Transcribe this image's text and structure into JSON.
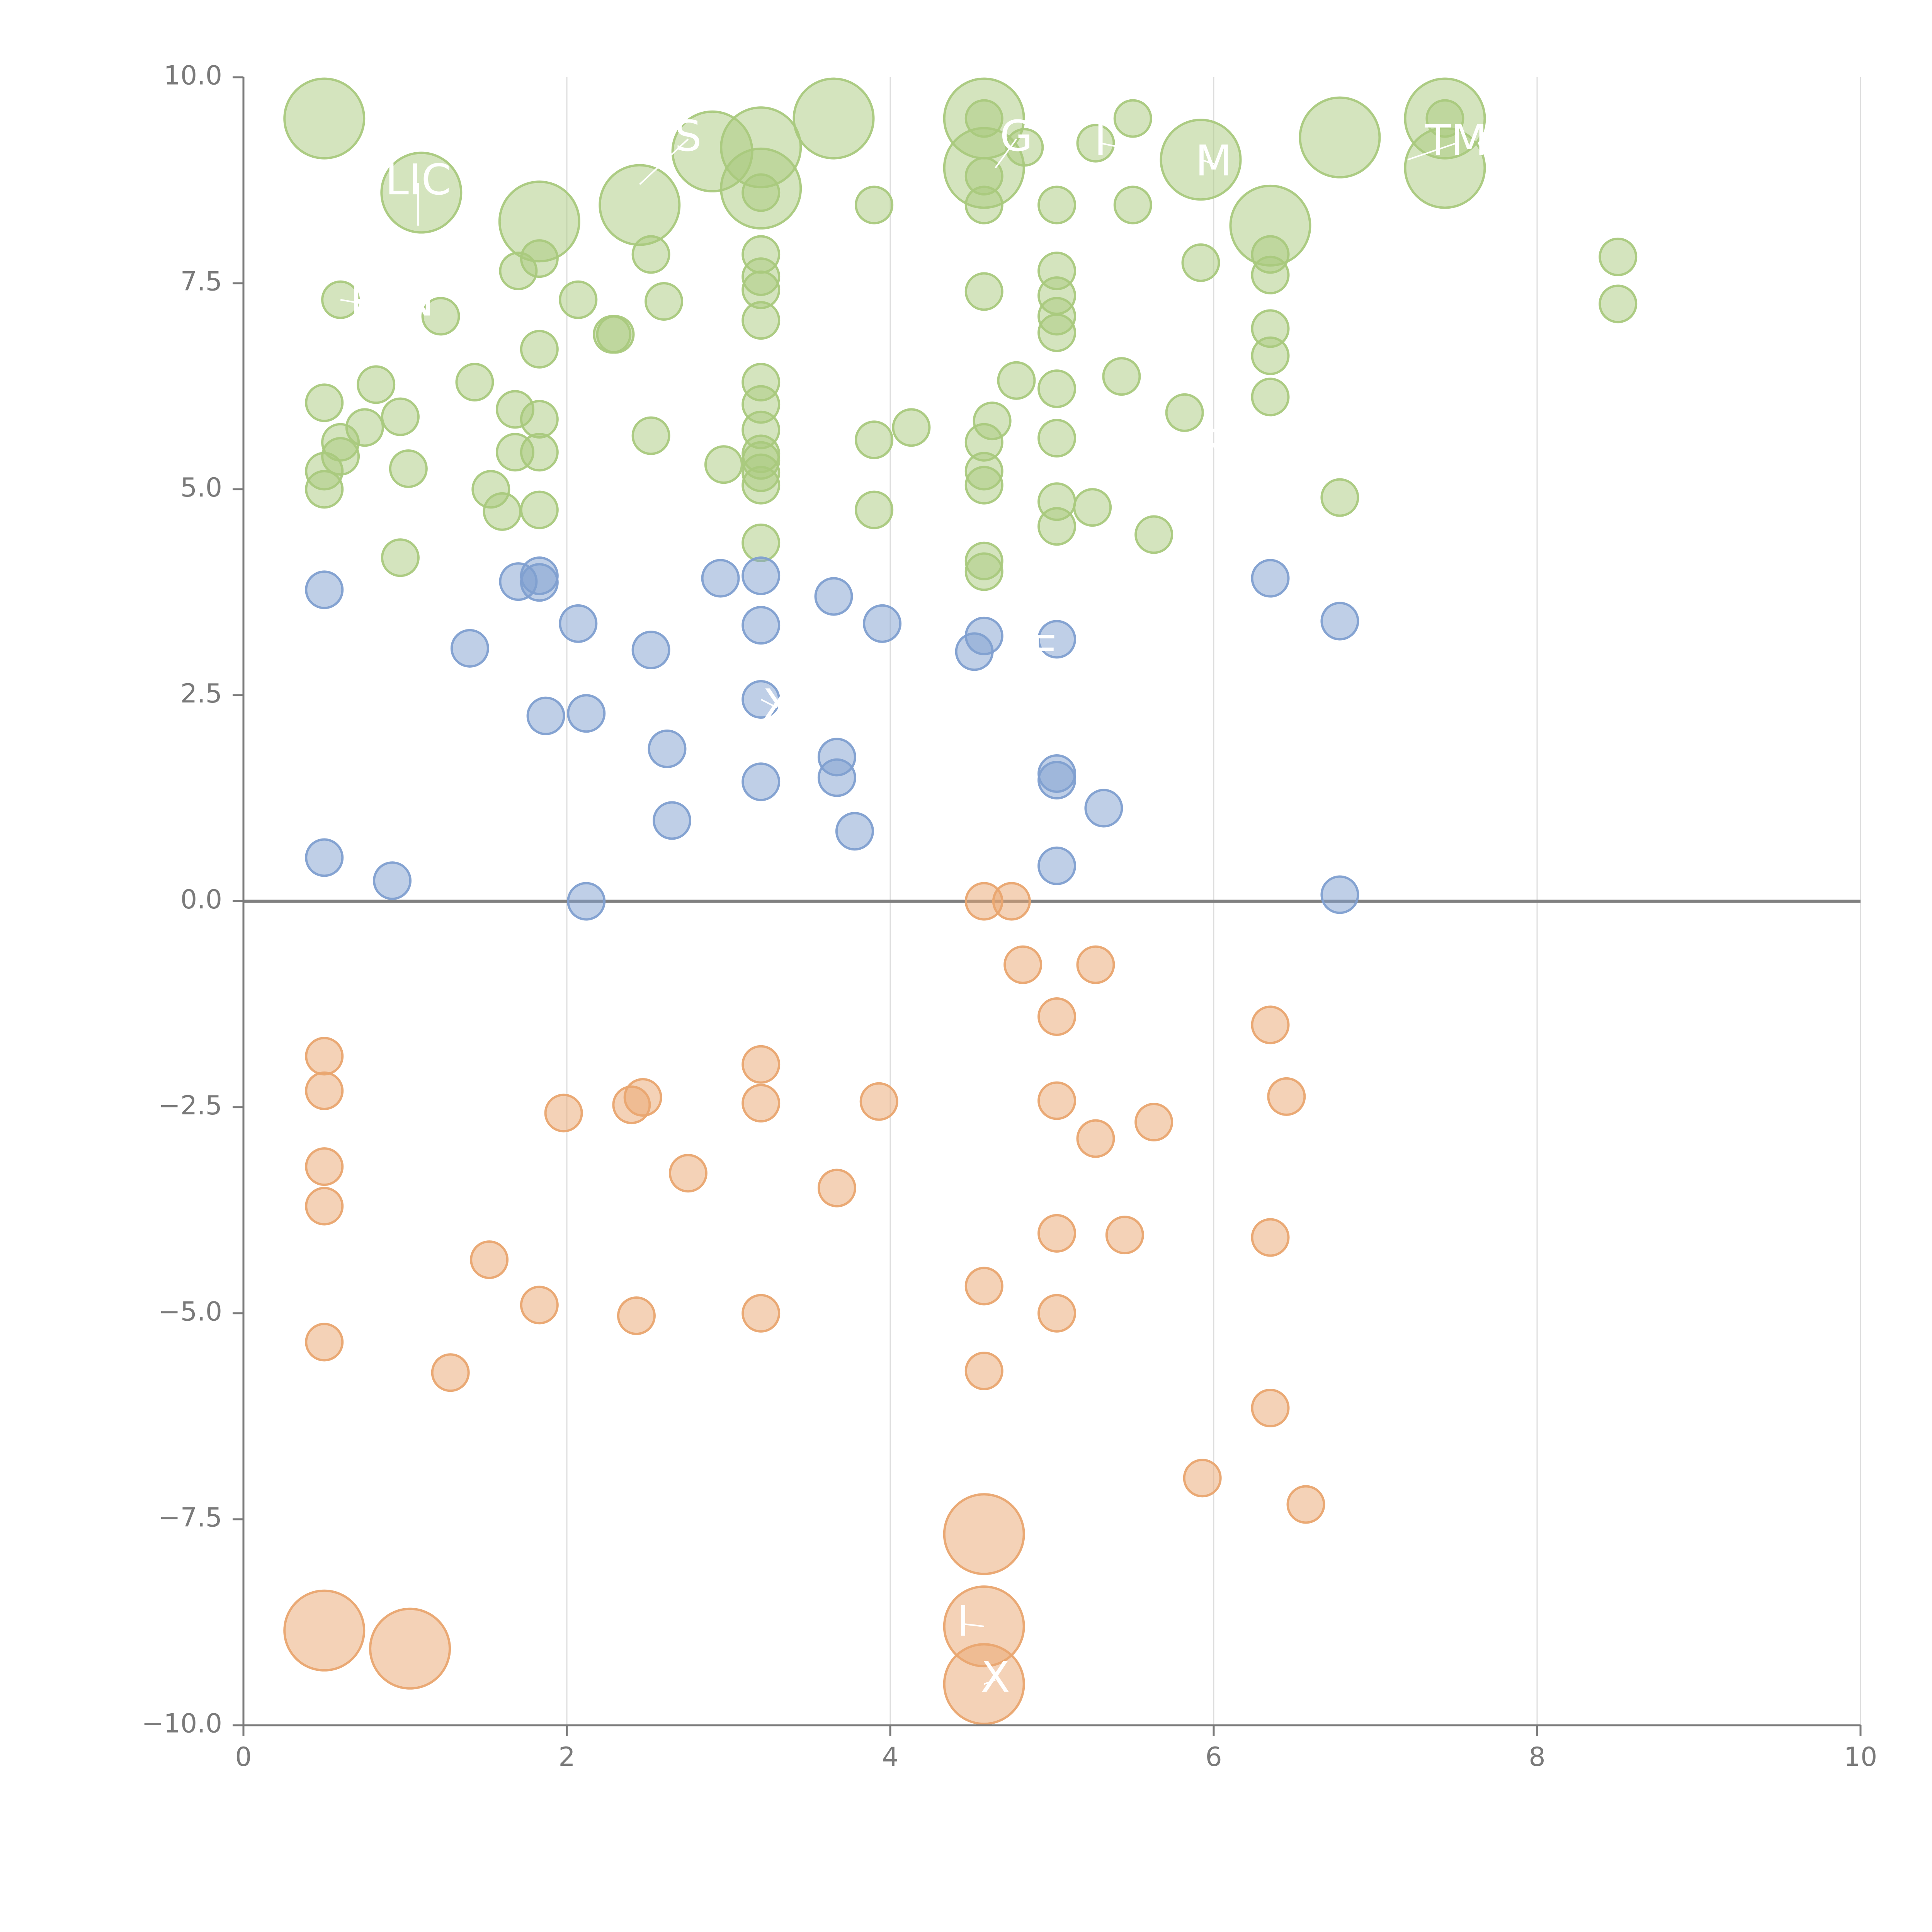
{
  "chart_data": {
    "type": "scatter",
    "title": "",
    "xlabel": "",
    "ylabel": "",
    "xlim": [
      0,
      10
    ],
    "ylim": [
      -10,
      10
    ],
    "xticks": [
      0,
      2,
      4,
      6,
      8,
      10
    ],
    "xtick_labels": [
      "0",
      "2",
      "4",
      "6",
      "8",
      "10"
    ],
    "yticks": [
      10,
      7.5,
      5,
      2.5,
      0,
      -2.5,
      -5,
      -7.5,
      -10
    ],
    "ytick_labels": [
      "10.0",
      "7.5",
      "5.0",
      "2.5",
      "0.0",
      "−2.5",
      "−5.0",
      "−7.5",
      "−10.0"
    ],
    "vertical_grid": true,
    "zero_line": true,
    "colors": {
      "green": "#a9c97d",
      "blue": "#7f9fd0",
      "orange": "#e9a56f",
      "axis": "#7a7a7a",
      "grid": "#dddddd",
      "zero": "#808080"
    },
    "series": [
      {
        "name": "green",
        "points": [
          [
            0.5,
            9.5,
            "L"
          ],
          [
            1.1,
            8.6,
            "L"
          ],
          [
            1.83,
            8.25,
            "L"
          ],
          [
            2.45,
            8.45,
            "L"
          ],
          [
            2.9,
            9.1,
            "L"
          ],
          [
            3.2,
            9.15,
            "L"
          ],
          [
            3.65,
            9.5,
            "L"
          ],
          [
            4.58,
            9.5,
            "L"
          ],
          [
            4.58,
            8.9,
            "L"
          ],
          [
            5.92,
            9.0,
            "L"
          ],
          [
            6.35,
            8.2,
            "L"
          ],
          [
            6.78,
            9.27,
            "L"
          ],
          [
            7.43,
            9.5,
            "L"
          ],
          [
            7.43,
            8.9,
            "L"
          ],
          [
            3.2,
            8.65,
            "L"
          ],
          [
            0.6,
            7.3,
            "S"
          ],
          [
            1.22,
            7.1,
            "S"
          ],
          [
            1.7,
            7.65,
            "S"
          ],
          [
            1.83,
            7.8,
            "S"
          ],
          [
            2.07,
            7.3,
            "S"
          ],
          [
            2.28,
            6.88,
            "S"
          ],
          [
            2.3,
            6.88,
            "S"
          ],
          [
            2.52,
            7.85,
            "S"
          ],
          [
            2.6,
            7.28,
            "S"
          ],
          [
            3.2,
            7.85,
            "S"
          ],
          [
            3.2,
            7.58,
            "S"
          ],
          [
            3.2,
            7.42,
            "S"
          ],
          [
            3.2,
            7.05,
            "S"
          ],
          [
            3.2,
            8.6,
            "S"
          ],
          [
            3.9,
            8.45,
            "S"
          ],
          [
            4.58,
            9.5,
            "S"
          ],
          [
            4.58,
            8.8,
            "S"
          ],
          [
            4.58,
            8.45,
            "S"
          ],
          [
            4.58,
            7.4,
            "S"
          ],
          [
            4.83,
            9.15,
            "S"
          ],
          [
            5.03,
            8.45,
            "S"
          ],
          [
            5.03,
            7.65,
            "S"
          ],
          [
            5.03,
            7.35,
            "S"
          ],
          [
            5.03,
            7.1,
            "S"
          ],
          [
            5.03,
            6.9,
            "S"
          ],
          [
            5.27,
            9.2,
            "S"
          ],
          [
            5.5,
            9.5,
            "S"
          ],
          [
            5.5,
            8.45,
            "S"
          ],
          [
            5.92,
            7.75,
            "S"
          ],
          [
            6.35,
            7.85,
            "S"
          ],
          [
            6.35,
            7.6,
            "S"
          ],
          [
            6.35,
            6.95,
            "S"
          ],
          [
            6.35,
            6.62,
            "S"
          ],
          [
            6.35,
            6.12,
            "S"
          ],
          [
            7.43,
            9.5,
            "S"
          ],
          [
            8.5,
            7.82,
            "S"
          ],
          [
            8.5,
            7.25,
            "S"
          ],
          [
            0.5,
            6.05,
            "S"
          ],
          [
            0.6,
            5.57,
            "S"
          ],
          [
            0.6,
            5.4,
            "S"
          ],
          [
            0.5,
            5.22,
            "S"
          ],
          [
            0.5,
            5.0,
            "S"
          ],
          [
            0.75,
            5.75,
            "S"
          ],
          [
            0.82,
            6.27,
            "S"
          ],
          [
            0.97,
            5.88,
            "S"
          ],
          [
            1.02,
            5.25,
            "S"
          ],
          [
            0.97,
            4.17,
            "S"
          ],
          [
            1.43,
            6.3,
            "S"
          ],
          [
            1.53,
            5.0,
            "S"
          ],
          [
            1.6,
            4.73,
            "S"
          ],
          [
            1.68,
            5.97,
            "S"
          ],
          [
            1.68,
            5.45,
            "S"
          ],
          [
            1.83,
            6.7,
            "S"
          ],
          [
            1.83,
            5.85,
            "S"
          ],
          [
            1.83,
            5.45,
            "S"
          ],
          [
            1.83,
            4.75,
            "S"
          ],
          [
            2.52,
            5.65,
            "S"
          ],
          [
            2.97,
            5.3,
            "S"
          ],
          [
            3.2,
            6.3,
            "S"
          ],
          [
            3.2,
            6.03,
            "S"
          ],
          [
            3.2,
            5.72,
            "S"
          ],
          [
            3.2,
            5.43,
            "S"
          ],
          [
            3.2,
            5.35,
            "S"
          ],
          [
            3.2,
            5.2,
            "S"
          ],
          [
            3.2,
            5.05,
            "S"
          ],
          [
            3.2,
            4.35,
            "S"
          ],
          [
            3.9,
            5.6,
            "S"
          ],
          [
            3.9,
            4.75,
            "S"
          ],
          [
            4.13,
            5.75,
            "S"
          ],
          [
            4.58,
            5.57,
            "S"
          ],
          [
            4.58,
            5.22,
            "S"
          ],
          [
            4.58,
            5.05,
            "S"
          ],
          [
            4.58,
            4.13,
            "S"
          ],
          [
            4.58,
            4.0,
            "S"
          ],
          [
            4.63,
            5.83,
            "S"
          ],
          [
            4.78,
            6.32,
            "S"
          ],
          [
            5.03,
            6.22,
            "S"
          ],
          [
            5.03,
            5.62,
            "S"
          ],
          [
            5.03,
            4.85,
            "S"
          ],
          [
            5.03,
            4.55,
            "S"
          ],
          [
            5.25,
            4.78,
            "S"
          ],
          [
            5.43,
            6.37,
            "S"
          ],
          [
            5.63,
            4.45,
            "S"
          ],
          [
            5.82,
            5.93,
            "S"
          ],
          [
            6.78,
            4.9,
            "S"
          ]
        ]
      },
      {
        "name": "blue",
        "points": [
          [
            0.5,
            3.78,
            "S"
          ],
          [
            0.5,
            0.53,
            "S"
          ],
          [
            0.92,
            0.25,
            "S"
          ],
          [
            1.4,
            3.07,
            "S"
          ],
          [
            1.7,
            3.88,
            "S"
          ],
          [
            1.83,
            3.95,
            "S"
          ],
          [
            1.83,
            3.87,
            "S"
          ],
          [
            1.87,
            2.25,
            "S"
          ],
          [
            2.07,
            3.37,
            "S"
          ],
          [
            2.12,
            2.28,
            "S"
          ],
          [
            2.12,
            0.0,
            "S"
          ],
          [
            2.52,
            3.05,
            "S"
          ],
          [
            2.62,
            1.85,
            "S"
          ],
          [
            2.65,
            0.98,
            "S"
          ],
          [
            2.95,
            3.92,
            "S"
          ],
          [
            3.2,
            3.95,
            "S"
          ],
          [
            3.2,
            3.35,
            "S"
          ],
          [
            3.2,
            2.45,
            "S"
          ],
          [
            3.2,
            1.45,
            "S"
          ],
          [
            3.65,
            3.7,
            "S"
          ],
          [
            3.67,
            1.75,
            "S"
          ],
          [
            3.67,
            1.5,
            "S"
          ],
          [
            3.78,
            0.85,
            "S"
          ],
          [
            3.95,
            3.37,
            "S"
          ],
          [
            4.52,
            3.03,
            "S"
          ],
          [
            4.58,
            3.22,
            "S"
          ],
          [
            5.03,
            3.18,
            "S"
          ],
          [
            5.03,
            1.55,
            "S"
          ],
          [
            5.03,
            1.47,
            "S"
          ],
          [
            5.03,
            0.43,
            "S"
          ],
          [
            5.32,
            1.13,
            "S"
          ],
          [
            6.35,
            3.92,
            "S"
          ],
          [
            6.78,
            3.4,
            "S"
          ],
          [
            6.78,
            0.08,
            "S"
          ]
        ]
      },
      {
        "name": "orange",
        "points": [
          [
            4.58,
            0.0,
            "S"
          ],
          [
            4.75,
            0.0,
            "S"
          ],
          [
            4.82,
            -0.77,
            "S"
          ],
          [
            5.27,
            -0.77,
            "S"
          ],
          [
            5.03,
            -1.4,
            "S"
          ],
          [
            6.35,
            -1.5,
            "S"
          ],
          [
            0.5,
            -1.88,
            "S"
          ],
          [
            0.5,
            -2.3,
            "S"
          ],
          [
            0.5,
            -3.22,
            "S"
          ],
          [
            0.5,
            -3.7,
            "S"
          ],
          [
            0.5,
            -5.35,
            "S"
          ],
          [
            1.28,
            -5.72,
            "S"
          ],
          [
            1.52,
            -4.35,
            "S"
          ],
          [
            1.83,
            -4.9,
            "S"
          ],
          [
            1.98,
            -2.57,
            "S"
          ],
          [
            2.4,
            -2.47,
            "S"
          ],
          [
            2.47,
            -2.38,
            "S"
          ],
          [
            2.43,
            -5.03,
            "S"
          ],
          [
            2.75,
            -3.3,
            "S"
          ],
          [
            3.2,
            -1.98,
            "S"
          ],
          [
            3.2,
            -2.45,
            "S"
          ],
          [
            3.2,
            -5.0,
            "S"
          ],
          [
            3.67,
            -3.48,
            "S"
          ],
          [
            3.93,
            -2.43,
            "S"
          ],
          [
            4.58,
            -4.67,
            "S"
          ],
          [
            4.58,
            -5.7,
            "S"
          ],
          [
            5.03,
            -2.42,
            "S"
          ],
          [
            5.03,
            -4.03,
            "S"
          ],
          [
            5.03,
            -5.0,
            "S"
          ],
          [
            5.27,
            -2.88,
            "S"
          ],
          [
            5.45,
            -4.05,
            "S"
          ],
          [
            5.63,
            -2.68,
            "S"
          ],
          [
            5.93,
            -7.0,
            "S"
          ],
          [
            6.35,
            -4.08,
            "S"
          ],
          [
            6.35,
            -6.15,
            "S"
          ],
          [
            6.45,
            -2.37,
            "S"
          ],
          [
            6.57,
            -7.32,
            "S"
          ],
          [
            0.5,
            -8.85,
            "L"
          ],
          [
            1.03,
            -9.07,
            "L"
          ],
          [
            4.58,
            -7.68,
            "L"
          ],
          [
            4.58,
            -8.8,
            "L"
          ],
          [
            4.58,
            -9.5,
            "L"
          ]
        ]
      }
    ],
    "annotations": [
      {
        "text": "LIC",
        "x": 1.08,
        "y": 8.72,
        "at_x": 1.08,
        "at_y": 8.2
      },
      {
        "text": "S",
        "x": 2.75,
        "y": 9.25,
        "at_x": 2.45,
        "at_y": 8.7
      },
      {
        "text": "G",
        "x": 4.78,
        "y": 9.25,
        "at_x": 4.65,
        "at_y": 8.9
      },
      {
        "text": "I",
        "x": 5.3,
        "y": 9.2,
        "at_x": 5.55,
        "at_y": 9.1
      },
      {
        "text": "M",
        "x": 6.0,
        "y": 8.95,
        "at_x": 5.92,
        "at_y": 9.0
      },
      {
        "text": "TM",
        "x": 7.5,
        "y": 9.2,
        "at_x": 7.2,
        "at_y": 9.0
      },
      {
        "text": "R",
        "x": 0.75,
        "y": 7.25,
        "at_x": 0.6,
        "at_y": 7.3
      },
      {
        "text": "N",
        "x": 1.08,
        "y": 7.25,
        "at_x": 1.0,
        "at_y": 7.3
      },
      {
        "text": "R",
        "x": 6.0,
        "y": 5.5,
        "at_x": 6.35,
        "at_y": 5.8
      },
      {
        "text": "E",
        "x": 4.95,
        "y": 3.0,
        "at_x": 4.8,
        "at_y": 3.2
      },
      {
        "text": "X",
        "x": 3.3,
        "y": 2.35,
        "at_x": 3.2,
        "at_y": 2.45
      },
      {
        "text": "I",
        "x": 4.45,
        "y": -8.77,
        "at_x": 4.58,
        "at_y": -8.8
      },
      {
        "text": "X",
        "x": 4.65,
        "y": -9.45,
        "at_x": 4.58,
        "at_y": -9.5
      }
    ]
  }
}
